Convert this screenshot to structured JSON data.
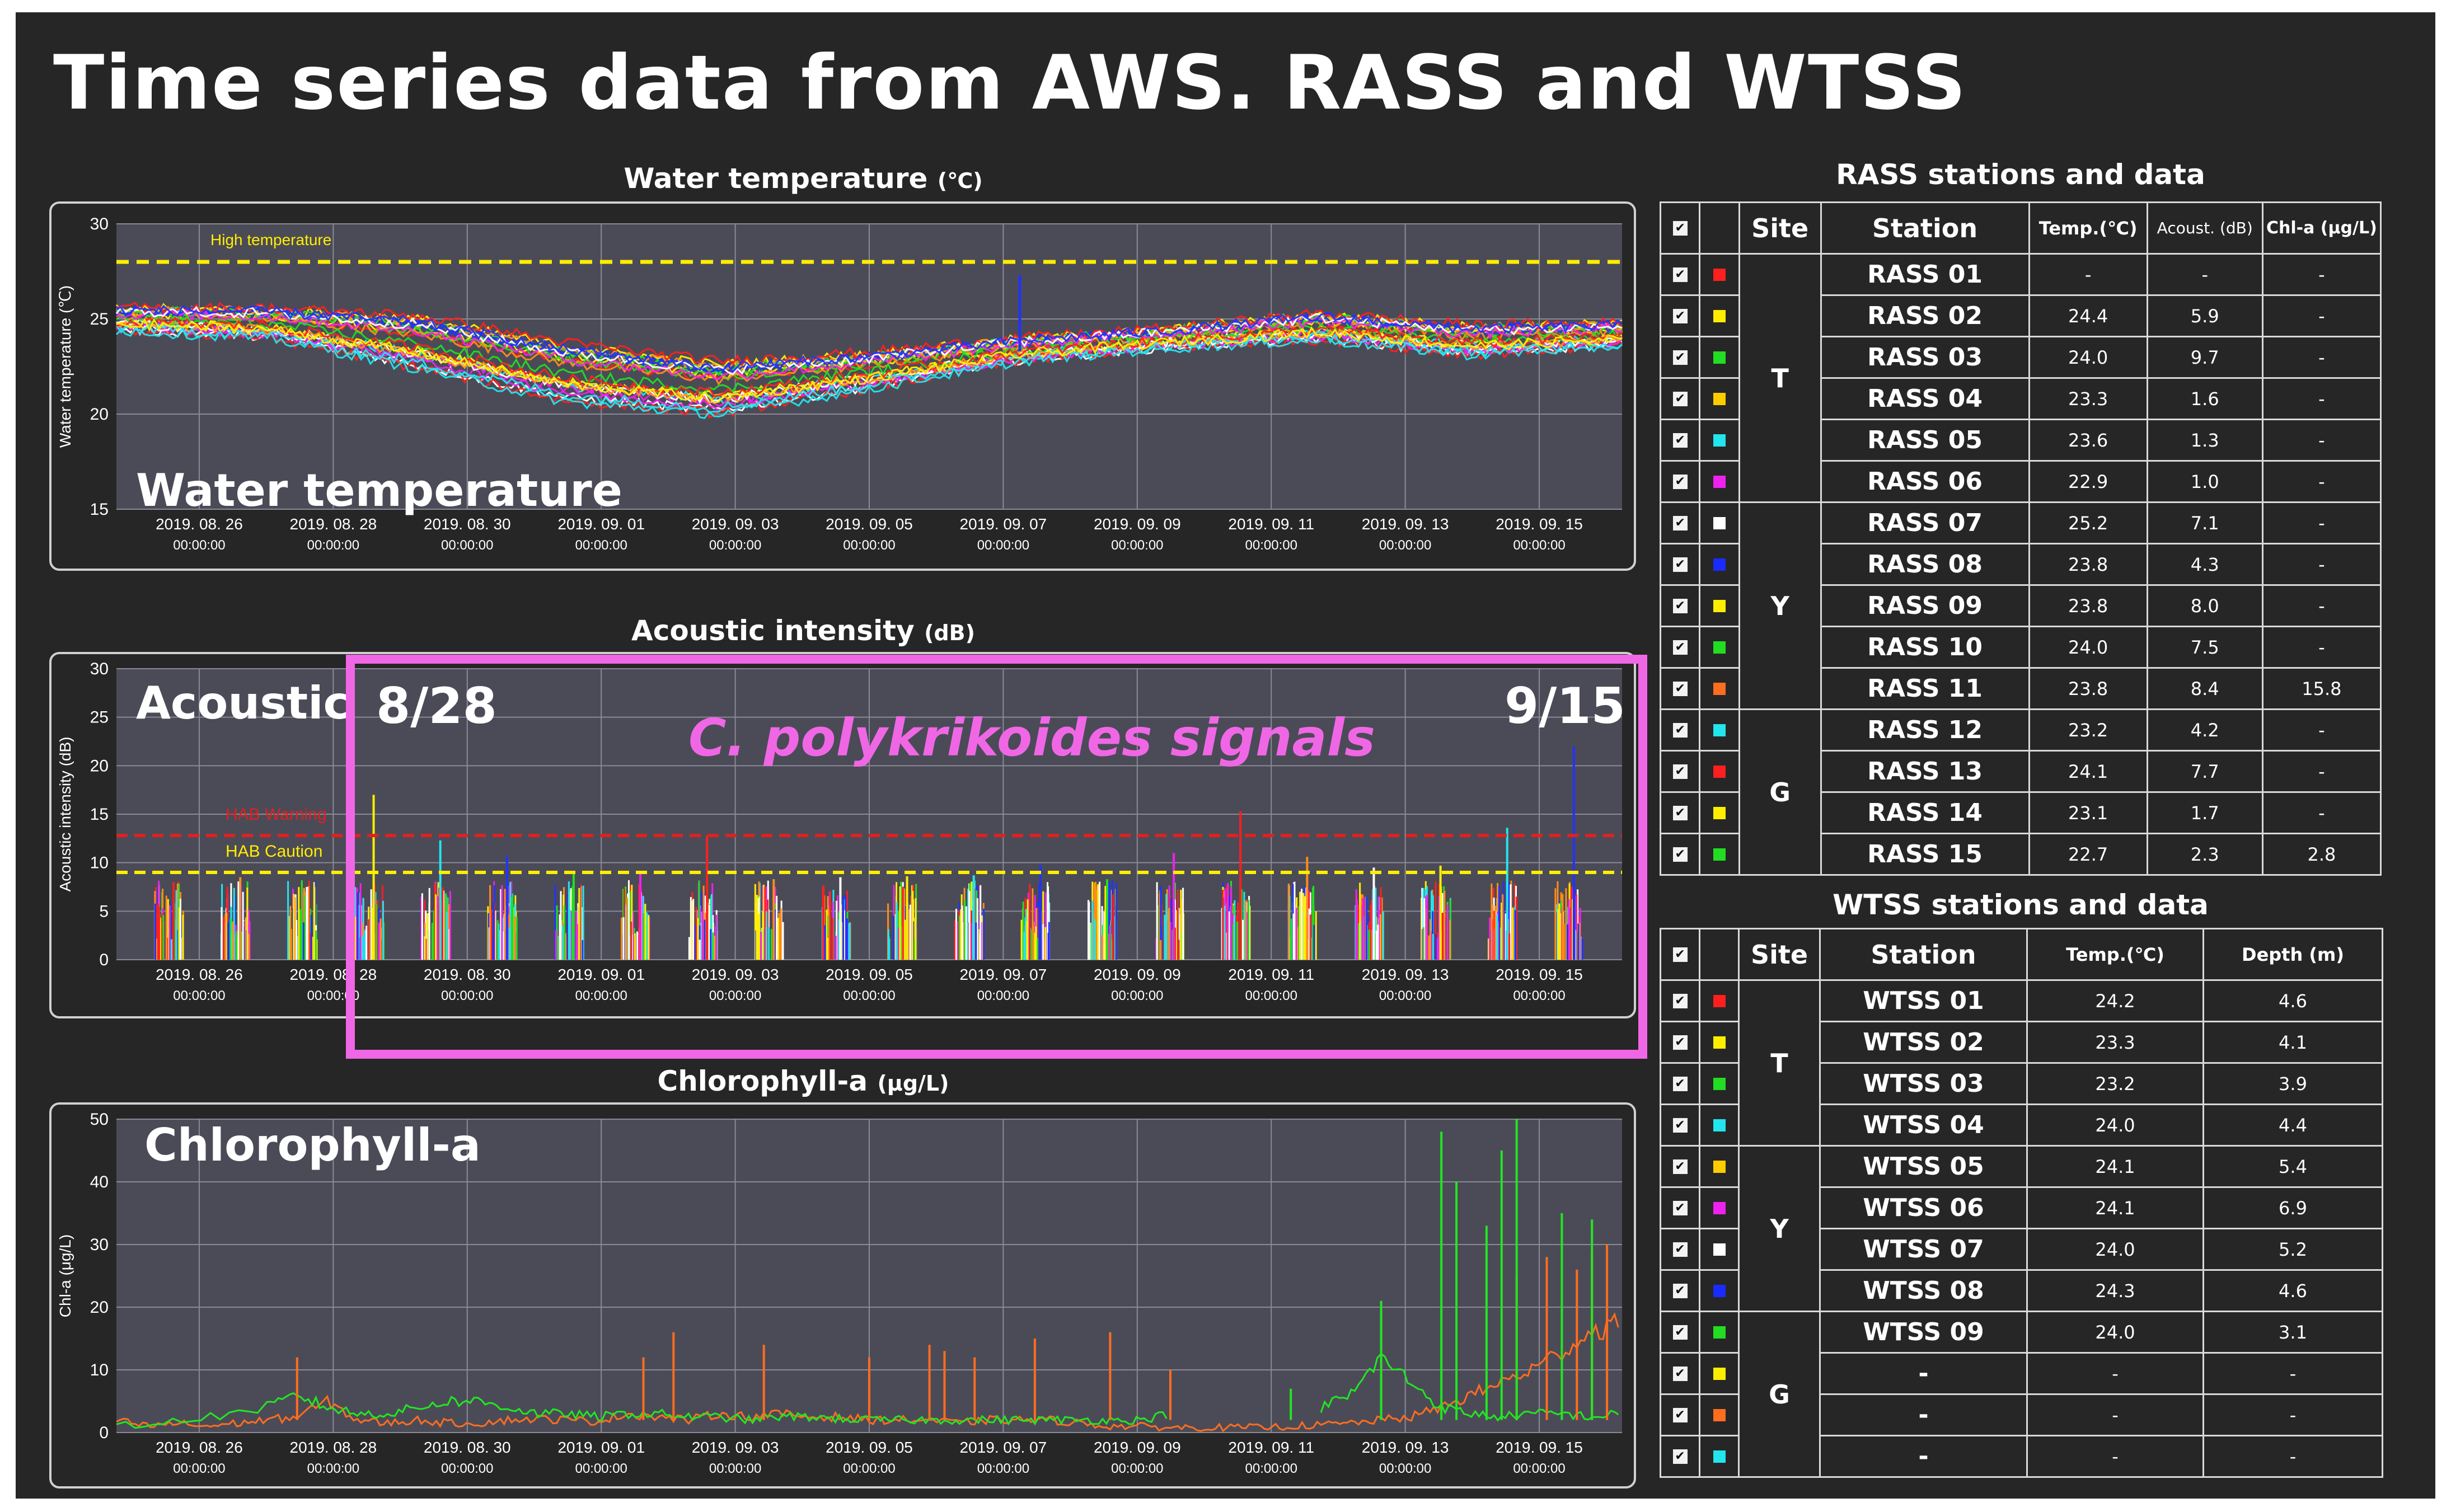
{
  "title": "Time series data from AWS. RASS and WTSS",
  "dates": [
    "2019. 08. 26",
    "2019. 08. 28",
    "2019. 08. 30",
    "2019. 09. 01",
    "2019. 09. 03",
    "2019. 09. 05",
    "2019. 09. 07",
    "2019. 09. 09",
    "2019. 09. 11",
    "2019. 09. 13",
    "2019. 09. 15"
  ],
  "time_label": "00:00:00",
  "colors": {
    "background": "#262626",
    "plot_bg": "#4b4b57",
    "grid": "#8a8a96",
    "text": "#ffffff",
    "highlight": "#f067e6"
  },
  "panels": {
    "water": {
      "title": "Water temperature",
      "unit": "(℃)",
      "overlay": "Water temperature",
      "ylabel": "Water temperature (℃)",
      "yticks": [
        "30",
        "25",
        "20",
        "15"
      ],
      "threshold_label": "High temperature"
    },
    "acoustic": {
      "title": "Acoustic intensity",
      "unit": "(dB)",
      "overlay": "Acoustic",
      "ylabel": "Acoustic intensity (dB)",
      "yticks": [
        "30",
        "25",
        "20",
        "15",
        "10",
        "5",
        "0"
      ],
      "warning_label": "HAB Warning",
      "caution_label": "HAB Caution"
    },
    "chl": {
      "title": "Chlorophyll-a",
      "unit": "(μg/L)",
      "overlay": "Chlorophyll-a",
      "ylabel": "Chl-a (μg/L)",
      "yticks": [
        "50",
        "40",
        "30",
        "20",
        "10",
        "0"
      ]
    }
  },
  "highlight": {
    "start": "8/28",
    "end": "9/15",
    "species": "C. polykrikoides signals"
  },
  "chart_data": [
    {
      "type": "line",
      "title": "Water temperature",
      "ylabel": "Water temperature (℃)",
      "ylim": [
        15,
        30
      ],
      "x": [
        "2019. 08. 26",
        "2019. 08. 28",
        "2019. 08. 30",
        "2019. 09. 01",
        "2019. 09. 03",
        "2019. 09. 05",
        "2019. 09. 07",
        "2019. 09. 09",
        "2019. 09. 11",
        "2019. 09. 13",
        "2019. 09. 15"
      ],
      "threshold": {
        "label": "High temperature",
        "value": 28
      },
      "series_mean": [
        25,
        24.8,
        23.8,
        22.2,
        21.4,
        22.3,
        23.4,
        24.0,
        24.6,
        23.9,
        24.2
      ],
      "series_spread": [
        0.7,
        0.9,
        1.6,
        1.8,
        1.6,
        1.1,
        0.7,
        0.6,
        0.8,
        0.9,
        0.7
      ],
      "colors": [
        "#ff2020",
        "#ffee00",
        "#22dd22",
        "#ff8c1a",
        "#22e5ee",
        "#ee22ee",
        "#ffffff",
        "#2233ff"
      ],
      "spike": {
        "x": "2019. 09. 06",
        "value": 27.3
      }
    },
    {
      "type": "bar",
      "title": "Acoustic intensity",
      "ylabel": "Acoustic intensity (dB)",
      "ylim": [
        0,
        30
      ],
      "grid": true,
      "warning": {
        "label": "HAB Warning",
        "value": 12.8
      },
      "caution": {
        "label": "HAB Caution",
        "value": 9
      },
      "daily_bursts": [
        {
          "day": "08. 25",
          "max": 8
        },
        {
          "day": "08. 26",
          "max": 8.5
        },
        {
          "day": "08. 27",
          "max": 7.5
        },
        {
          "day": "08. 28",
          "max": 17
        },
        {
          "day": "08. 29",
          "max": 12.3
        },
        {
          "day": "08. 30",
          "max": 10.7
        },
        {
          "day": "08. 31",
          "max": 9
        },
        {
          "day": "09. 01",
          "max": 9
        },
        {
          "day": "09. 02",
          "max": 12.8
        },
        {
          "day": "09. 03",
          "max": 8.3
        },
        {
          "day": "09. 04",
          "max": 8.5
        },
        {
          "day": "09. 05",
          "max": 8.6
        },
        {
          "day": "09. 06",
          "max": 8.7
        },
        {
          "day": "09. 07",
          "max": 9.8
        },
        {
          "day": "09. 08",
          "max": 8.3
        },
        {
          "day": "09. 09",
          "max": 11
        },
        {
          "day": "09. 10",
          "max": 15.3
        },
        {
          "day": "09. 11",
          "max": 10.6
        },
        {
          "day": "09. 12",
          "max": 9.5
        },
        {
          "day": "09. 13",
          "max": 9.7
        },
        {
          "day": "09. 14",
          "max": 13.6
        },
        {
          "day": "09. 15",
          "max": 22
        }
      ]
    },
    {
      "type": "line",
      "title": "Chlorophyll-a",
      "ylabel": "Chl-a (μg/L)",
      "ylim": [
        0,
        50
      ],
      "series": [
        {
          "color": "#ff6d1f",
          "x": [
            0,
            2,
            4,
            6,
            8,
            10,
            12,
            14,
            16,
            18,
            20,
            22,
            24,
            26,
            28,
            30,
            32,
            34,
            36,
            38,
            40,
            42,
            44,
            46,
            48,
            50,
            52,
            54,
            56,
            58,
            60,
            62,
            64,
            66,
            68,
            70,
            72,
            74,
            76,
            78,
            80,
            82,
            84,
            86,
            88,
            90,
            92,
            94,
            96,
            98,
            100
          ],
          "values": [
            2,
            1,
            1.5,
            1,
            1.5,
            2,
            2.5,
            5,
            2,
            1.5,
            2,
            1.5,
            1.5,
            2,
            2.2,
            2,
            1.8,
            3,
            2.5,
            2,
            3,
            2.5,
            3,
            2.5,
            2.5,
            2,
            2,
            2,
            1.5,
            2,
            2,
            2,
            1.5,
            1,
            1,
            0.8,
            0.8,
            0.8,
            0.8,
            1,
            1.2,
            1.5,
            2,
            2.5,
            4,
            6,
            8,
            10,
            13,
            16,
            18
          ]
        },
        {
          "color": "#22e622",
          "x": [
            0,
            5,
            10,
            12,
            14,
            16,
            18,
            20,
            22,
            24,
            26,
            28,
            30,
            32,
            34,
            36,
            38,
            40,
            42,
            44,
            46,
            48,
            50,
            52,
            54,
            56,
            58,
            60,
            62,
            64,
            66,
            68,
            70,
            75,
            80,
            82,
            84,
            86,
            88,
            90,
            92,
            94,
            96,
            98,
            100
          ],
          "values": [
            1,
            2,
            4,
            6,
            4,
            3,
            3,
            4,
            5,
            5,
            4,
            3,
            3,
            2.5,
            3,
            3,
            2.5,
            2.5,
            2,
            2.5,
            2.5,
            2.2,
            2,
            2,
            2,
            2,
            2,
            2,
            2,
            2,
            2,
            2,
            3,
            null,
            4,
            6,
            12,
            8,
            4,
            3,
            2.5,
            3,
            3,
            2.5,
            3
          ]
        }
      ],
      "spikes": [
        {
          "color": "#ff6d1f",
          "x": [
            12,
            35,
            37,
            43,
            50,
            54,
            55,
            57,
            61,
            66,
            70,
            93,
            95,
            97,
            98,
            99
          ],
          "values": [
            12,
            12,
            16,
            14,
            12,
            14,
            13,
            12,
            15,
            16,
            10,
            25,
            28,
            26,
            29,
            30
          ]
        },
        {
          "color": "#22e622",
          "x": [
            78,
            84,
            88,
            89,
            91,
            92,
            93,
            96,
            98
          ],
          "values": [
            7,
            21,
            48,
            40,
            33,
            45,
            50,
            35,
            34
          ]
        }
      ]
    }
  ],
  "rass": {
    "title": "RASS stations and data",
    "headers": {
      "site": "Site",
      "station": "Station",
      "temp": "Temp.(℃)",
      "acoust": "Acoust. (dB)",
      "chl": "Chl-a (μg/L)"
    },
    "groups": [
      {
        "site": "T",
        "rows": [
          {
            "color": "#ff1f1f",
            "station": "RASS 01",
            "temp": "-",
            "acoust": "-",
            "chl": "-"
          },
          {
            "color": "#ffee00",
            "station": "RASS 02",
            "temp": "24.4",
            "acoust": "5.9",
            "chl": "-"
          },
          {
            "color": "#22dd22",
            "station": "RASS 03",
            "temp": "24.0",
            "acoust": "9.7",
            "chl": "-"
          },
          {
            "color": "#ffcc00",
            "station": "RASS 04",
            "temp": "23.3",
            "acoust": "1.6",
            "chl": "-"
          },
          {
            "color": "#22e5ee",
            "station": "RASS 05",
            "temp": "23.6",
            "acoust": "1.3",
            "chl": "-"
          },
          {
            "color": "#ee22ee",
            "station": "RASS 06",
            "temp": "22.9",
            "acoust": "1.0",
            "chl": "-"
          }
        ]
      },
      {
        "site": "Y",
        "rows": [
          {
            "color": "#ffffff",
            "station": "RASS 07",
            "temp": "25.2",
            "acoust": "7.1",
            "chl": "-"
          },
          {
            "color": "#1a2bff",
            "station": "RASS 08",
            "temp": "23.8",
            "acoust": "4.3",
            "chl": "-"
          },
          {
            "color": "#ffee00",
            "station": "RASS 09",
            "temp": "23.8",
            "acoust": "8.0",
            "chl": "-"
          },
          {
            "color": "#22dd22",
            "station": "RASS 10",
            "temp": "24.0",
            "acoust": "7.5",
            "chl": "-"
          },
          {
            "color": "#ff6d1f",
            "station": "RASS 11",
            "temp": "23.8",
            "acoust": "8.4",
            "chl": "15.8"
          }
        ]
      },
      {
        "site": "G",
        "rows": [
          {
            "color": "#22e5ee",
            "station": "RASS 12",
            "temp": "23.2",
            "acoust": "4.2",
            "chl": "-"
          },
          {
            "color": "#ff1f1f",
            "station": "RASS 13",
            "temp": "24.1",
            "acoust": "7.7",
            "chl": "-"
          },
          {
            "color": "#ffee00",
            "station": "RASS 14",
            "temp": "23.1",
            "acoust": "1.7",
            "chl": "-"
          },
          {
            "color": "#22dd22",
            "station": "RASS 15",
            "temp": "22.7",
            "acoust": "2.3",
            "chl": "2.8"
          }
        ]
      }
    ]
  },
  "wtss": {
    "title": "WTSS stations and data",
    "headers": {
      "site": "Site",
      "station": "Station",
      "temp": "Temp.(℃)",
      "depth": "Depth (m)"
    },
    "groups": [
      {
        "site": "T",
        "rows": [
          {
            "color": "#ff1f1f",
            "station": "WTSS 01",
            "temp": "24.2",
            "depth": "4.6"
          },
          {
            "color": "#ffee00",
            "station": "WTSS 02",
            "temp": "23.3",
            "depth": "4.1"
          },
          {
            "color": "#22dd22",
            "station": "WTSS 03",
            "temp": "23.2",
            "depth": "3.9"
          },
          {
            "color": "#22e5ee",
            "station": "WTSS 04",
            "temp": "24.0",
            "depth": "4.4"
          }
        ]
      },
      {
        "site": "Y",
        "rows": [
          {
            "color": "#ffcc00",
            "station": "WTSS 05",
            "temp": "24.1",
            "depth": "5.4"
          },
          {
            "color": "#ee22ee",
            "station": "WTSS 06",
            "temp": "24.1",
            "depth": "6.9"
          },
          {
            "color": "#ffffff",
            "station": "WTSS 07",
            "temp": "24.0",
            "depth": "5.2"
          },
          {
            "color": "#1a2bff",
            "station": "WTSS 08",
            "temp": "24.3",
            "depth": "4.6"
          }
        ]
      },
      {
        "site": "G",
        "rows": [
          {
            "color": "#22dd22",
            "station": "WTSS 09",
            "temp": "24.0",
            "depth": "3.1"
          },
          {
            "color": "#ffee00",
            "station": "-",
            "temp": "-",
            "depth": "-"
          },
          {
            "color": "#ff6d1f",
            "station": "-",
            "temp": "-",
            "depth": "-"
          },
          {
            "color": "#22e5ee",
            "station": "-",
            "temp": "-",
            "depth": "-"
          }
        ]
      }
    ]
  }
}
